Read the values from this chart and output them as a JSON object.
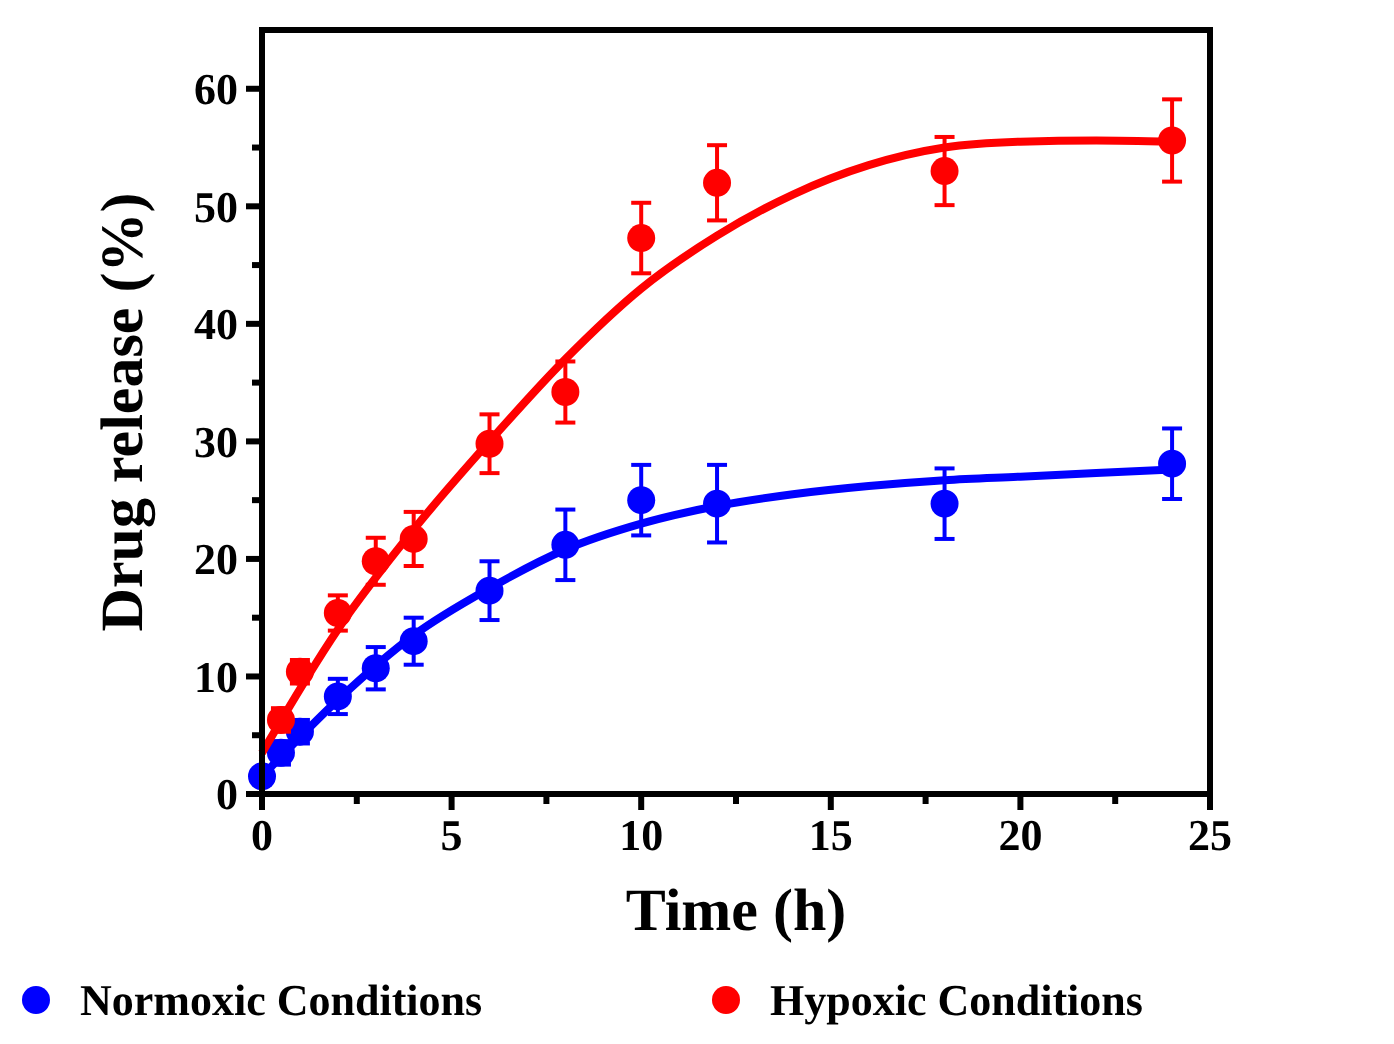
{
  "chart_data": {
    "type": "scatter",
    "xlabel": "Time (h)",
    "ylabel": "Drug release (%)",
    "xlim": [
      0,
      25
    ],
    "ylim": [
      0,
      65
    ],
    "xticks": [
      0,
      {
        "value": 2.5,
        "label": null
      },
      5,
      {
        "value": 7.5,
        "label": null
      },
      10,
      {
        "value": 12.5,
        "label": null
      },
      15,
      {
        "value": 17.5,
        "label": null
      },
      20,
      {
        "value": 22.5,
        "label": null
      },
      25
    ],
    "yticks": [
      0,
      {
        "value": 5,
        "label": null
      },
      10,
      {
        "value": 15,
        "label": null
      },
      20,
      {
        "value": 25,
        "label": null
      },
      30,
      {
        "value": 35,
        "label": null
      },
      40,
      {
        "value": 45,
        "label": null
      },
      50,
      {
        "value": 55,
        "label": null
      },
      60
    ],
    "legend": "bottom",
    "grid": false,
    "series": [
      {
        "name": "Normoxic Conditions",
        "color": "#0000ff",
        "marker": "circle",
        "x": [
          0,
          0.5,
          1,
          2,
          3,
          4,
          6,
          8,
          10,
          12,
          18,
          24
        ],
        "values": [
          1.5,
          3.5,
          5.3,
          8.3,
          10.7,
          13,
          17.3,
          21.2,
          25,
          24.7,
          24.7,
          28.1
        ],
        "errors": [
          null,
          1,
          1,
          1.5,
          1.8,
          2,
          2.5,
          3,
          3,
          3.3,
          3,
          3
        ]
      },
      {
        "name": "Hypoxic Conditions",
        "color": "#ff0000",
        "marker": "circle",
        "x": [
          0.5,
          1,
          2,
          3,
          4,
          6,
          8,
          10,
          12,
          18,
          24
        ],
        "values": [
          6.3,
          10.4,
          15.4,
          19.8,
          21.7,
          29.8,
          34.2,
          47.3,
          52,
          53,
          55.6
        ],
        "errors": [
          1,
          1,
          1.5,
          2,
          2.3,
          2.5,
          2.6,
          3,
          3.2,
          2.9,
          3.5
        ]
      },
      {
        "type": "line",
        "color": "#0000ff",
        "marker": "none",
        "x": [
          0,
          2,
          4,
          6,
          8,
          10,
          12,
          14,
          16,
          18,
          20,
          24
        ],
        "values": [
          1.5,
          8,
          13.5,
          17.5,
          20.8,
          23,
          24.5,
          25.5,
          26.2,
          26.7,
          27,
          27.6
        ]
      },
      {
        "type": "line",
        "color": "#ff0000",
        "marker": "none",
        "x": [
          0,
          2,
          4,
          6,
          8,
          10,
          12,
          14,
          16,
          18,
          20,
          22,
          24
        ],
        "values": [
          3.5,
          14,
          22.5,
          30,
          37,
          43,
          47.5,
          51,
          53.5,
          55,
          55.5,
          55.6,
          55.5
        ]
      }
    ]
  }
}
